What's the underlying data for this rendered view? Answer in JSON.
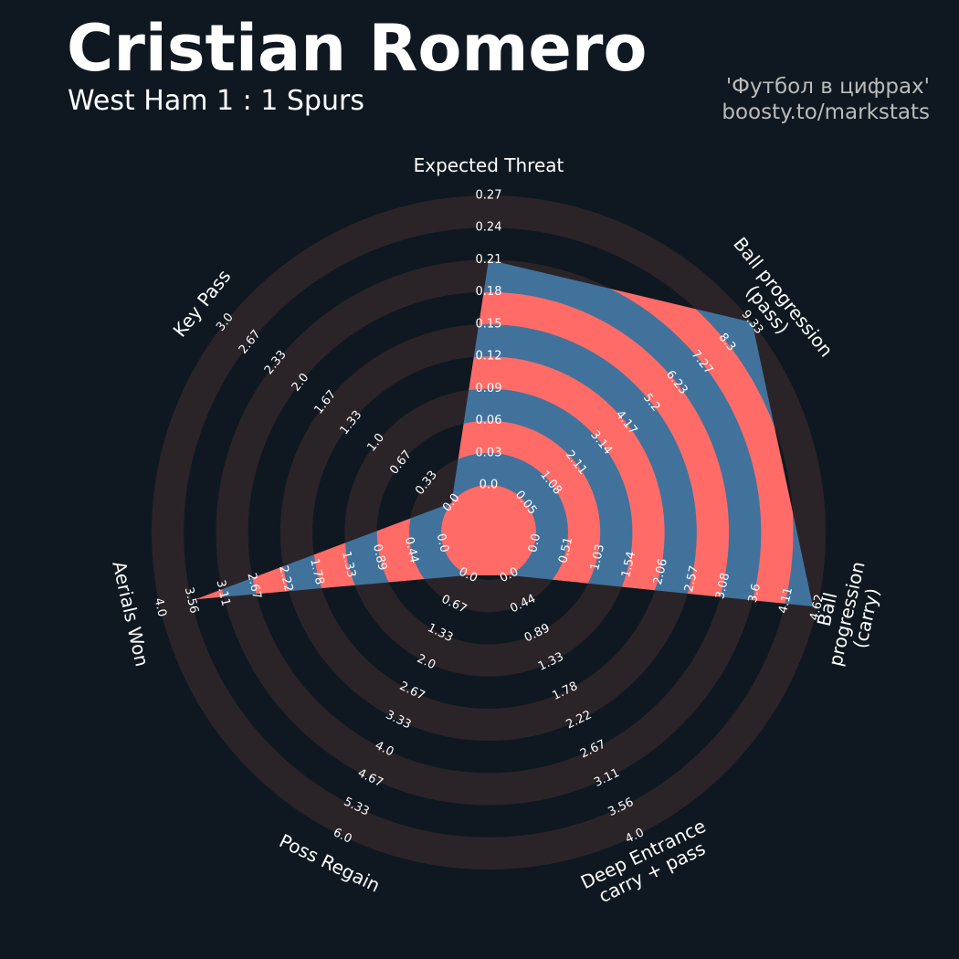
{
  "title": "Cristian Romero",
  "subtitle": "West Ham 1 : 1 Spurs",
  "credits": [
    "'Футбол в цифрах'",
    "boosty.to/markstats"
  ],
  "chart_data": {
    "type": "radar",
    "categories": [
      "Expected Threat",
      "Ball progression (pass)",
      "Ball progression (carry)",
      "Deep Entrance\ncarry + pass",
      "Poss Regain",
      "Aerials Won",
      "Key Pass"
    ],
    "values": [
      0.21,
      9.33,
      4.55,
      0,
      0,
      3.5,
      0
    ],
    "colors": {
      "inner": "#41729c",
      "inner_alt": "#ff6b67",
      "ring": "#2a2429",
      "background": "#0f1820"
    },
    "axes": [
      {
        "lim": [
          0,
          0.27
        ],
        "ticks": [
          {
            "value": 0,
            "label": "0.0"
          },
          0.03,
          0.06,
          0.09,
          0.12,
          0.15,
          0.18,
          0.21,
          0.24,
          0.27
        ]
      },
      {
        "lim": [
          0.05,
          9.33
        ],
        "ticks": [
          0.05,
          1.08,
          2.11,
          3.14,
          4.17,
          5.2,
          6.23,
          7.27,
          8.3,
          9.33
        ]
      },
      {
        "lim": [
          0,
          4.62
        ],
        "ticks": [
          {
            "value": 0,
            "label": "0.0"
          },
          0.51,
          1.03,
          1.54,
          2.06,
          2.57,
          3.08,
          3.6,
          4.11,
          4.62
        ]
      },
      {
        "lim": [
          0,
          4
        ],
        "ticks": [
          {
            "value": 0,
            "label": "0.0"
          },
          0.44,
          0.89,
          1.33,
          1.78,
          2.22,
          2.67,
          3.11,
          3.56,
          {
            "value": 4,
            "label": "4.0"
          }
        ]
      },
      {
        "lim": [
          0,
          6
        ],
        "ticks": [
          {
            "value": 0,
            "label": "0.0"
          },
          0.67,
          1.33,
          {
            "value": 2,
            "label": "2.0"
          },
          2.67,
          3.33,
          {
            "value": 4,
            "label": "4.0"
          },
          4.67,
          5.33,
          {
            "value": 6,
            "label": "6.0"
          }
        ]
      },
      {
        "lim": [
          0,
          4
        ],
        "ticks": [
          {
            "value": 0,
            "label": "0.0"
          },
          0.44,
          0.89,
          1.33,
          1.78,
          2.22,
          2.67,
          3.11,
          3.56,
          {
            "value": 4,
            "label": "4.0"
          }
        ]
      },
      {
        "lim": [
          0,
          3
        ],
        "ticks": [
          {
            "value": 0,
            "label": "0.0"
          },
          0.33,
          0.67,
          {
            "value": 1,
            "label": "1.0"
          },
          1.33,
          1.67,
          {
            "value": 2,
            "label": "2.0"
          },
          2.33,
          2.67,
          {
            "value": 3,
            "label": "3.0"
          }
        ]
      }
    ]
  }
}
